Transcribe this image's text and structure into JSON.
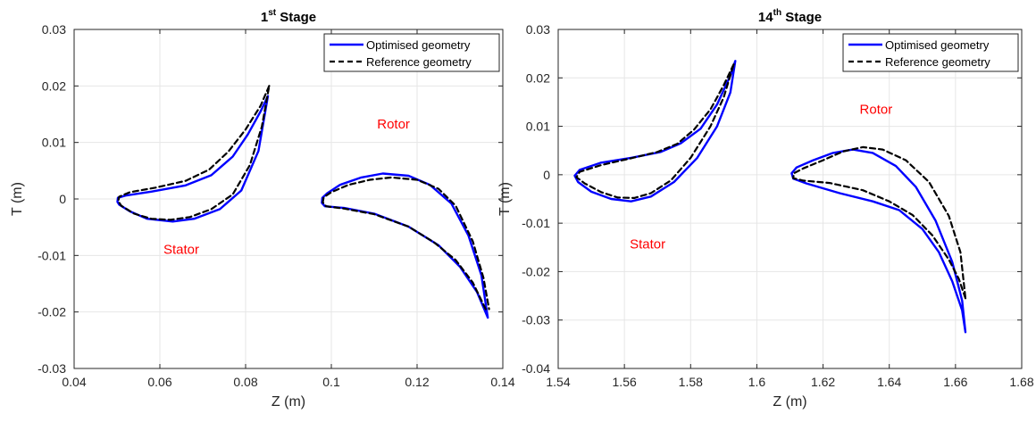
{
  "chart_data": [
    {
      "type": "line",
      "title_main": "1",
      "title_sup": "st",
      "title_rest": " Stage",
      "xlabel": "Z (m)",
      "ylabel": "T (m)",
      "xlim": [
        0.04,
        0.14
      ],
      "ylim": [
        -0.03,
        0.03
      ],
      "xticks": [
        0.04,
        0.06,
        0.08,
        0.1,
        0.12,
        0.14
      ],
      "xticklabels": [
        "0.04",
        "0.06",
        "0.08",
        "0.1",
        "0.12",
        "0.14"
      ],
      "yticks": [
        -0.03,
        -0.02,
        -0.01,
        0,
        0.01,
        0.02,
        0.03
      ],
      "yticklabels": [
        "-0.03",
        "-0.02",
        "-0.01",
        "0",
        "0.01",
        "0.02",
        "0.03"
      ],
      "grid": true,
      "legend_position": "top-right",
      "series": [
        {
          "name": "Optimised geometry",
          "color": "#0000ff",
          "style": "solid",
          "curves": [
            [
              [
                0.0852,
                0.0182
              ],
              [
                0.0835,
                0.0155
              ],
              [
                0.0805,
                0.0114
              ],
              [
                0.077,
                0.0075
              ],
              [
                0.072,
                0.0042
              ],
              [
                0.066,
                0.0024
              ],
              [
                0.058,
                0.0013
              ],
              [
                0.052,
                0.0006
              ],
              [
                0.0502,
                0.0002
              ],
              [
                0.0501,
                -0.0005
              ],
              [
                0.0505,
                -0.001
              ],
              [
                0.053,
                -0.0022
              ],
              [
                0.057,
                -0.0035
              ],
              [
                0.063,
                -0.004
              ],
              [
                0.068,
                -0.0035
              ],
              [
                0.074,
                -0.0018
              ],
              [
                0.079,
                0.0015
              ],
              [
                0.083,
                0.0085
              ],
              [
                0.0852,
                0.0182
              ]
            ],
            [
              [
                0.1365,
                -0.021
              ],
              [
                0.134,
                -0.0165
              ],
              [
                0.13,
                -0.012
              ],
              [
                0.125,
                -0.0082
              ],
              [
                0.118,
                -0.0049
              ],
              [
                0.11,
                -0.0026
              ],
              [
                0.103,
                -0.0016
              ],
              [
                0.0985,
                -0.0013
              ],
              [
                0.0978,
                -0.0007
              ],
              [
                0.0979,
                0.0002
              ],
              [
                0.099,
                0.001
              ],
              [
                0.102,
                0.0025
              ],
              [
                0.107,
                0.0038
              ],
              [
                0.112,
                0.0045
              ],
              [
                0.118,
                0.0041
              ],
              [
                0.123,
                0.0025
              ],
              [
                0.128,
                -0.0008
              ],
              [
                0.132,
                -0.0065
              ],
              [
                0.135,
                -0.0135
              ],
              [
                0.1365,
                -0.021
              ]
            ]
          ]
        },
        {
          "name": "Reference geometry",
          "color": "#000000",
          "style": "dashed",
          "curves": [
            [
              [
                0.0855,
                0.02
              ],
              [
                0.0835,
                0.0165
              ],
              [
                0.08,
                0.0123
              ],
              [
                0.076,
                0.0084
              ],
              [
                0.0715,
                0.0052
              ],
              [
                0.066,
                0.0032
              ],
              [
                0.059,
                0.002
              ],
              [
                0.053,
                0.0012
              ],
              [
                0.0505,
                0.0004
              ],
              [
                0.0503,
                -0.0004
              ],
              [
                0.051,
                -0.0012
              ],
              [
                0.054,
                -0.0026
              ],
              [
                0.058,
                -0.0035
              ],
              [
                0.0625,
                -0.0037
              ],
              [
                0.067,
                -0.0032
              ],
              [
                0.072,
                -0.0018
              ],
              [
                0.077,
                0.0008
              ],
              [
                0.081,
                0.006
              ],
              [
                0.0838,
                0.0128
              ],
              [
                0.0855,
                0.02
              ]
            ],
            [
              [
                0.136,
                -0.0195
              ],
              [
                0.133,
                -0.0148
              ],
              [
                0.129,
                -0.0108
              ],
              [
                0.124,
                -0.0077
              ],
              [
                0.118,
                -0.0049
              ],
              [
                0.11,
                -0.0027
              ],
              [
                0.103,
                -0.0017
              ],
              [
                0.0988,
                -0.0013
              ],
              [
                0.098,
                -0.0006
              ],
              [
                0.0982,
                0.0003
              ],
              [
                0.1,
                0.0012
              ],
              [
                0.104,
                0.0025
              ],
              [
                0.109,
                0.0034
              ],
              [
                0.114,
                0.0038
              ],
              [
                0.12,
                0.0034
              ],
              [
                0.125,
                0.0018
              ],
              [
                0.129,
                -0.0012
              ],
              [
                0.133,
                -0.0075
              ],
              [
                0.1355,
                -0.014
              ],
              [
                0.1368,
                -0.0195
              ]
            ]
          ]
        }
      ],
      "annotations": [
        {
          "text": "Rotor",
          "x": 0.1145,
          "y": 0.0125,
          "color": "#ff0000"
        },
        {
          "text": "Stator",
          "x": 0.065,
          "y": -0.0097,
          "color": "#ff0000"
        }
      ]
    },
    {
      "type": "line",
      "title_main": "14",
      "title_sup": "th",
      "title_rest": " Stage",
      "xlabel": "Z (m)",
      "ylabel": "T (m)",
      "xlim": [
        1.54,
        1.68
      ],
      "ylim": [
        -0.04,
        0.03
      ],
      "xticks": [
        1.54,
        1.56,
        1.58,
        1.6,
        1.62,
        1.64,
        1.66,
        1.68
      ],
      "xticklabels": [
        "1.54",
        "1.56",
        "1.58",
        "1.6",
        "1.62",
        "1.64",
        "1.66",
        "1.68"
      ],
      "yticks": [
        -0.04,
        -0.03,
        -0.02,
        -0.01,
        0,
        0.01,
        0.02,
        0.03
      ],
      "yticklabels": [
        "-0.04",
        "-0.03",
        "-0.02",
        "-0.01",
        "0",
        "0.01",
        "0.02",
        "0.03"
      ],
      "grid": true,
      "legend_position": "top-right",
      "series": [
        {
          "name": "Optimised geometry",
          "color": "#0000ff",
          "style": "solid",
          "curves": [
            [
              [
                1.5935,
                0.0235
              ],
              [
                1.592,
                0.0205
              ],
              [
                1.588,
                0.0145
              ],
              [
                1.583,
                0.0095
              ],
              [
                1.577,
                0.0065
              ],
              [
                1.571,
                0.0047
              ],
              [
                1.562,
                0.0035
              ],
              [
                1.553,
                0.0025
              ],
              [
                1.5465,
                0.001
              ],
              [
                1.545,
                -0.0002
              ],
              [
                1.546,
                -0.0015
              ],
              [
                1.55,
                -0.0035
              ],
              [
                1.556,
                -0.005
              ],
              [
                1.562,
                -0.0055
              ],
              [
                1.568,
                -0.0045
              ],
              [
                1.575,
                -0.0015
              ],
              [
                1.582,
                0.0035
              ],
              [
                1.588,
                0.01
              ],
              [
                1.592,
                0.017
              ],
              [
                1.5935,
                0.0235
              ]
            ],
            [
              [
                1.663,
                -0.0325
              ],
              [
                1.662,
                -0.028
              ],
              [
                1.659,
                -0.022
              ],
              [
                1.655,
                -0.016
              ],
              [
                1.65,
                -0.0112
              ],
              [
                1.643,
                -0.0073
              ],
              [
                1.635,
                -0.0055
              ],
              [
                1.625,
                -0.0038
              ],
              [
                1.615,
                -0.0018
              ],
              [
                1.611,
                -0.0008
              ],
              [
                1.6105,
                0.0003
              ],
              [
                1.612,
                0.0015
              ],
              [
                1.617,
                0.003
              ],
              [
                1.623,
                0.0045
              ],
              [
                1.629,
                0.0052
              ],
              [
                1.635,
                0.0045
              ],
              [
                1.642,
                0.0018
              ],
              [
                1.648,
                -0.0025
              ],
              [
                1.654,
                -0.0095
              ],
              [
                1.659,
                -0.018
              ],
              [
                1.662,
                -0.026
              ],
              [
                1.663,
                -0.0325
              ]
            ]
          ]
        },
        {
          "name": "Reference geometry",
          "color": "#000000",
          "style": "dashed",
          "curves": [
            [
              [
                1.593,
                0.0228
              ],
              [
                1.59,
                0.0185
              ],
              [
                1.586,
                0.0135
              ],
              [
                1.581,
                0.0093
              ],
              [
                1.576,
                0.0064
              ],
              [
                1.57,
                0.0047
              ],
              [
                1.562,
                0.0034
              ],
              [
                1.553,
                0.002
              ],
              [
                1.5465,
                0.0006
              ],
              [
                1.5455,
                -0.0005
              ],
              [
                1.548,
                -0.0018
              ],
              [
                1.553,
                -0.0036
              ],
              [
                1.558,
                -0.0047
              ],
              [
                1.563,
                -0.0048
              ],
              [
                1.568,
                -0.0038
              ],
              [
                1.574,
                -0.0012
              ],
              [
                1.58,
                0.0035
              ],
              [
                1.586,
                0.01
              ],
              [
                1.59,
                0.016
              ],
              [
                1.593,
                0.0228
              ]
            ],
            [
              [
                1.663,
                -0.0255
              ],
              [
                1.661,
                -0.0215
              ],
              [
                1.658,
                -0.0175
              ],
              [
                1.653,
                -0.0125
              ],
              [
                1.647,
                -0.0083
              ],
              [
                1.64,
                -0.0055
              ],
              [
                1.632,
                -0.0032
              ],
              [
                1.622,
                -0.0017
              ],
              [
                1.614,
                -0.0012
              ],
              [
                1.611,
                -0.0007
              ],
              [
                1.6112,
                0.0003
              ],
              [
                1.614,
                0.0013
              ],
              [
                1.62,
                0.003
              ],
              [
                1.626,
                0.0048
              ],
              [
                1.632,
                0.0057
              ],
              [
                1.638,
                0.0052
              ],
              [
                1.645,
                0.003
              ],
              [
                1.652,
                -0.0015
              ],
              [
                1.658,
                -0.0085
              ],
              [
                1.6615,
                -0.016
              ],
              [
                1.663,
                -0.0255
              ]
            ]
          ]
        }
      ],
      "annotations": [
        {
          "text": "Rotor",
          "x": 1.636,
          "y": 0.0126,
          "color": "#ff0000"
        },
        {
          "text": "Stator",
          "x": 1.567,
          "y": -0.0152,
          "color": "#ff0000"
        }
      ]
    }
  ]
}
